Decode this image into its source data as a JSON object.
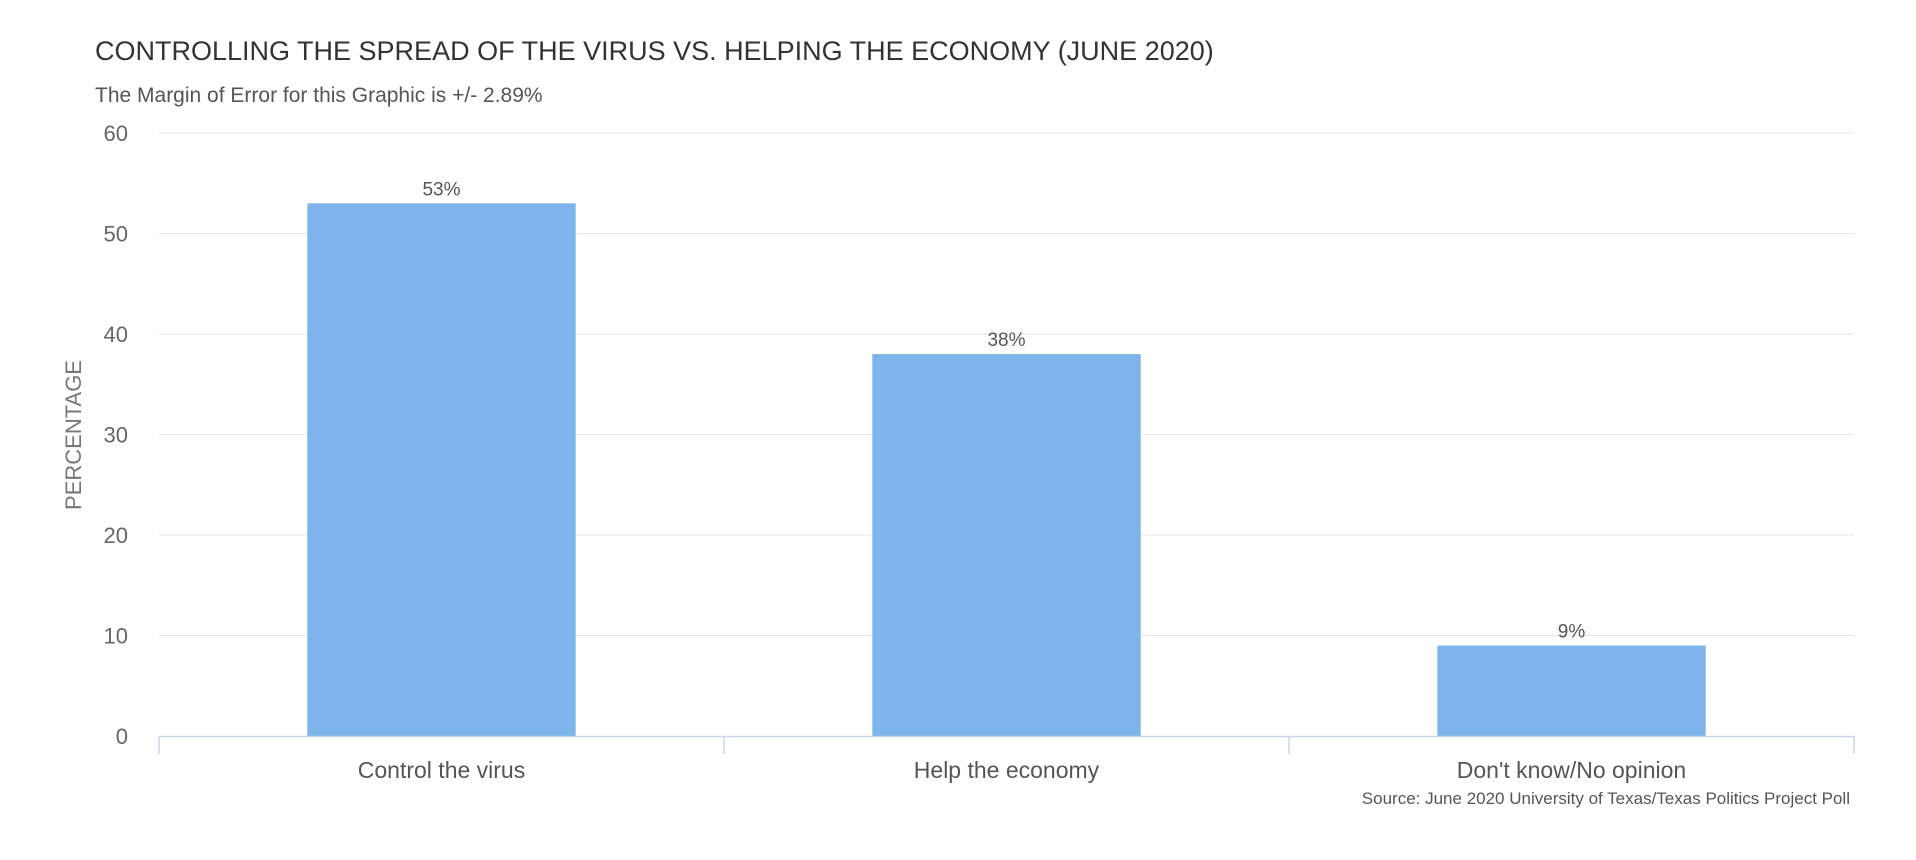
{
  "chart_data": {
    "type": "bar",
    "title": "CONTROLLING THE SPREAD OF THE VIRUS VS. HELPING THE ECONOMY (JUNE 2020)",
    "subtitle": "The Margin of Error for this Graphic is +/- 2.89%",
    "source": "Source: June 2020 University of Texas/Texas Politics Project Poll",
    "xlabel": "",
    "ylabel": "PERCENTAGE",
    "ylim": [
      0,
      60
    ],
    "yticks": [
      0,
      10,
      20,
      30,
      40,
      50,
      60
    ],
    "grid": true,
    "categories": [
      "Control the virus",
      "Help the economy",
      "Don't know/No opinion"
    ],
    "values": [
      53,
      38,
      9
    ],
    "data_labels": [
      "53%",
      "38%",
      "9%"
    ],
    "colors": {
      "bar": "#7cb4eb",
      "grid": "#e6e6e6",
      "axis": "#ccd6eb"
    }
  }
}
